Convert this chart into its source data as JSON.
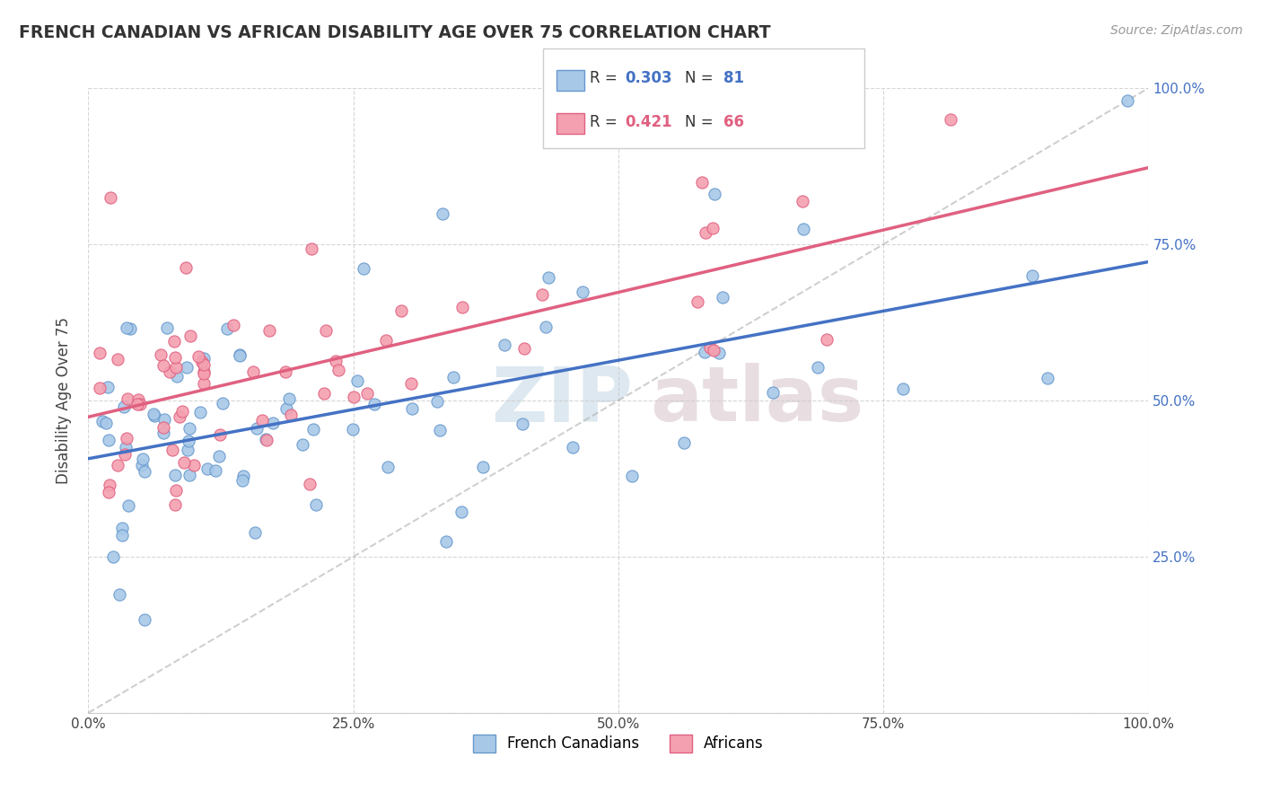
{
  "title": "FRENCH CANADIAN VS AFRICAN DISABILITY AGE OVER 75 CORRELATION CHART",
  "source": "Source: ZipAtlas.com",
  "ylabel": "Disability Age Over 75",
  "xlim": [
    0.0,
    1.0
  ],
  "ylim": [
    0.0,
    1.0
  ],
  "xtick_labels": [
    "0.0%",
    "25.0%",
    "50.0%",
    "75.0%",
    "100.0%"
  ],
  "ytick_labels_right": [
    "25.0%",
    "50.0%",
    "75.0%",
    "100.0%"
  ],
  "legend_r1": "0.303",
  "legend_n1": "81",
  "legend_r2": "0.421",
  "legend_n2": "66",
  "watermark_zip": "ZIP",
  "watermark_atlas": "atlas",
  "blue_color": "#a8c8e8",
  "blue_edge": "#6699cc",
  "pink_color": "#f4a0b0",
  "pink_edge": "#e06080",
  "blue_line_color": "#4472c4",
  "pink_line_color": "#e06080",
  "dash_line_color": "#b0b0b0",
  "right_axis_color": "#4472c4"
}
